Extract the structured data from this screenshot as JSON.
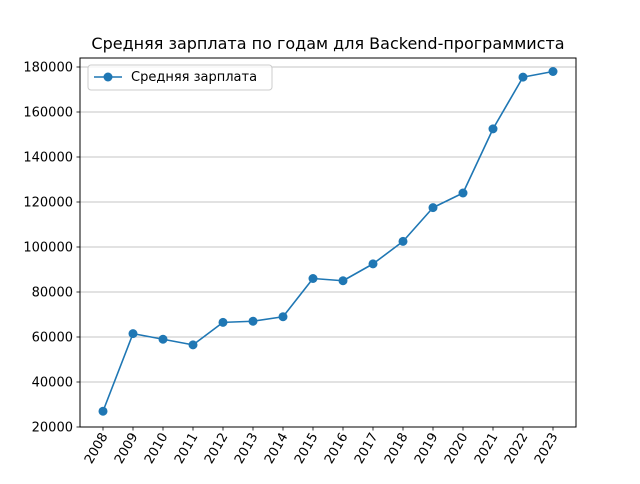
{
  "chart_data": {
    "type": "line",
    "title": "Средняя зарплата по годам для Backend-программиста",
    "xlabel": "",
    "ylabel": "",
    "categories": [
      "2008",
      "2009",
      "2010",
      "2011",
      "2012",
      "2013",
      "2014",
      "2015",
      "2016",
      "2017",
      "2018",
      "2019",
      "2020",
      "2021",
      "2022",
      "2023"
    ],
    "series": [
      {
        "name": "Средняя зарплата",
        "values": [
          27000,
          61500,
          59000,
          56500,
          66500,
          67000,
          69000,
          86000,
          85000,
          92500,
          102500,
          117500,
          124000,
          152500,
          175500,
          178000
        ]
      }
    ],
    "ylim": [
      20000,
      184000
    ],
    "yticks": [
      20000,
      40000,
      60000,
      80000,
      100000,
      120000,
      140000,
      160000,
      180000
    ],
    "y_grid": true,
    "x_grid": false,
    "legend_position": "top-left",
    "x_tick_rotation": -60,
    "color": "#1f77b4"
  }
}
